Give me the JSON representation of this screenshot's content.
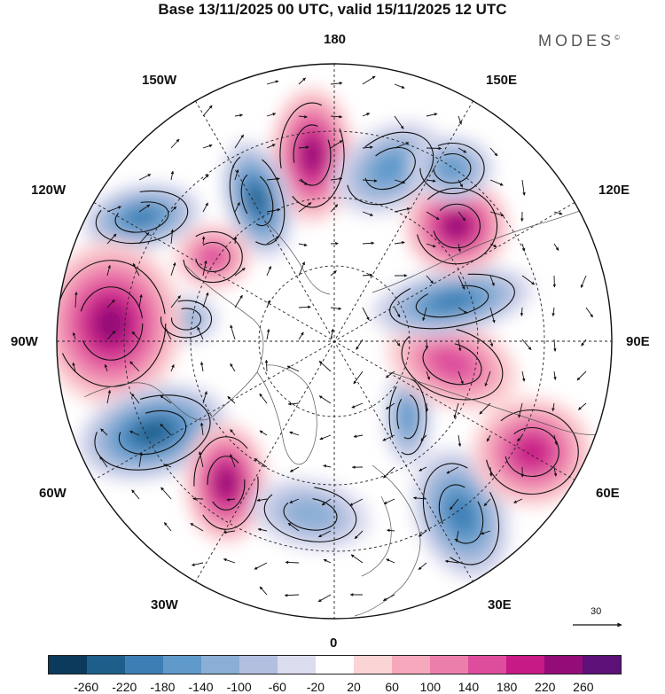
{
  "title": "Base 13/11/2025 00 UTC, valid 15/11/2025 12 UTC",
  "brand": "MODES",
  "brand_mark": "©",
  "map": {
    "projection": "north-polar-stereographic",
    "longitude_labels": {
      "top": "180",
      "bottom": "0",
      "left": "90W",
      "right": "90E",
      "upper_left_1": "150W",
      "upper_left_2": "120W",
      "upper_right_1": "150E",
      "upper_right_2": "120E",
      "lower_left_1": "60W",
      "lower_left_2": "30W",
      "lower_right_1": "60E",
      "lower_right_2": "30E"
    },
    "wind_reference_label": "30",
    "anomaly_centers": [
      {
        "sign": "positive",
        "strength": 240,
        "name": "anomaly-high-north-pacific"
      },
      {
        "sign": "negative",
        "strength": -140,
        "name": "anomaly-low-bering"
      },
      {
        "sign": "negative",
        "strength": -220,
        "name": "anomaly-low-alaska-gulf"
      },
      {
        "sign": "negative",
        "strength": -200,
        "name": "anomaly-low-northeast-pacific"
      },
      {
        "sign": "positive",
        "strength": 160,
        "name": "anomaly-high-western-canada"
      },
      {
        "sign": "negative",
        "strength": -100,
        "name": "anomaly-low-hudson"
      },
      {
        "sign": "positive",
        "strength": 240,
        "name": "anomaly-high-central-canada"
      },
      {
        "sign": "negative",
        "strength": -260,
        "name": "anomaly-low-labrador"
      },
      {
        "sign": "positive",
        "strength": 220,
        "name": "anomaly-high-north-atlantic"
      },
      {
        "sign": "negative",
        "strength": -120,
        "name": "anomaly-low-iceland"
      },
      {
        "sign": "negative",
        "strength": -200,
        "name": "anomaly-low-western-russia"
      },
      {
        "sign": "negative",
        "strength": -160,
        "name": "anomaly-low-kara-sea"
      },
      {
        "sign": "positive",
        "strength": 160,
        "name": "anomaly-high-central-asia"
      },
      {
        "sign": "positive",
        "strength": 200,
        "name": "anomaly-high-central-siberia"
      },
      {
        "sign": "negative",
        "strength": -200,
        "name": "anomaly-low-east-siberia"
      },
      {
        "sign": "positive",
        "strength": 240,
        "name": "anomaly-high-far-east"
      },
      {
        "sign": "negative",
        "strength": -140,
        "name": "anomaly-low-kamchatka"
      }
    ]
  },
  "colorbar": {
    "colors": [
      "#0b3a5c",
      "#1d5f8a",
      "#3d7eb4",
      "#5f9acb",
      "#8aaed5",
      "#b3bfdf",
      "#dcdcef",
      "#ffffff",
      "#fbd4d6",
      "#f6a9bc",
      "#ec7eac",
      "#dd4d9b",
      "#c71a86",
      "#930c78",
      "#5c1078"
    ],
    "tick_labels": [
      "-260",
      "-220",
      "-180",
      "-140",
      "-100",
      "-60",
      "-20",
      "20",
      "60",
      "100",
      "140",
      "180",
      "220",
      "260"
    ]
  }
}
